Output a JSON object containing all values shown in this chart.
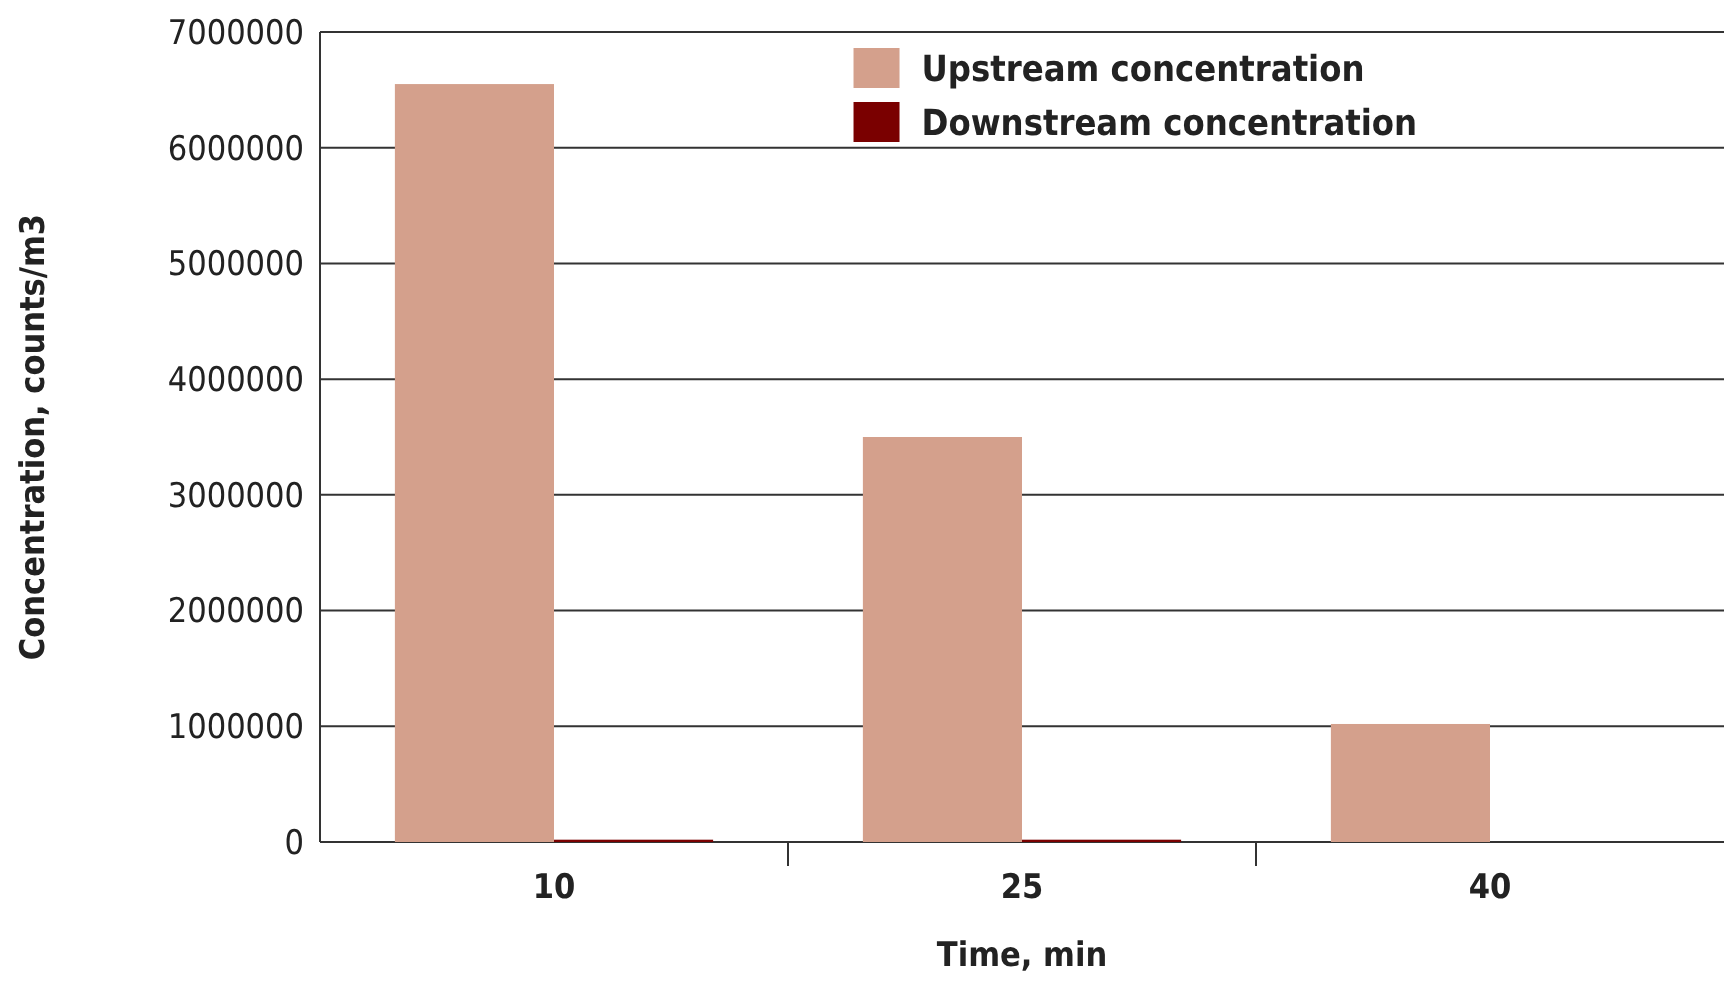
{
  "chart_data": {
    "type": "bar",
    "xlabel": "Time, min",
    "ylabel": "Concentration, counts/m3",
    "categories": [
      "10",
      "25",
      "40"
    ],
    "series": [
      {
        "name": "Upstream concentration",
        "color": "#d4a08c",
        "values": [
          6550000,
          3500000,
          1020000
        ]
      },
      {
        "name": "Downstream concentration",
        "color": "#7a0000",
        "values": [
          20000,
          20000,
          0
        ]
      }
    ],
    "ylim": [
      0,
      7000000
    ],
    "yticks": [
      0,
      1000000,
      2000000,
      3000000,
      4000000,
      5000000,
      6000000,
      7000000
    ],
    "grid": "y",
    "legend": "top"
  }
}
